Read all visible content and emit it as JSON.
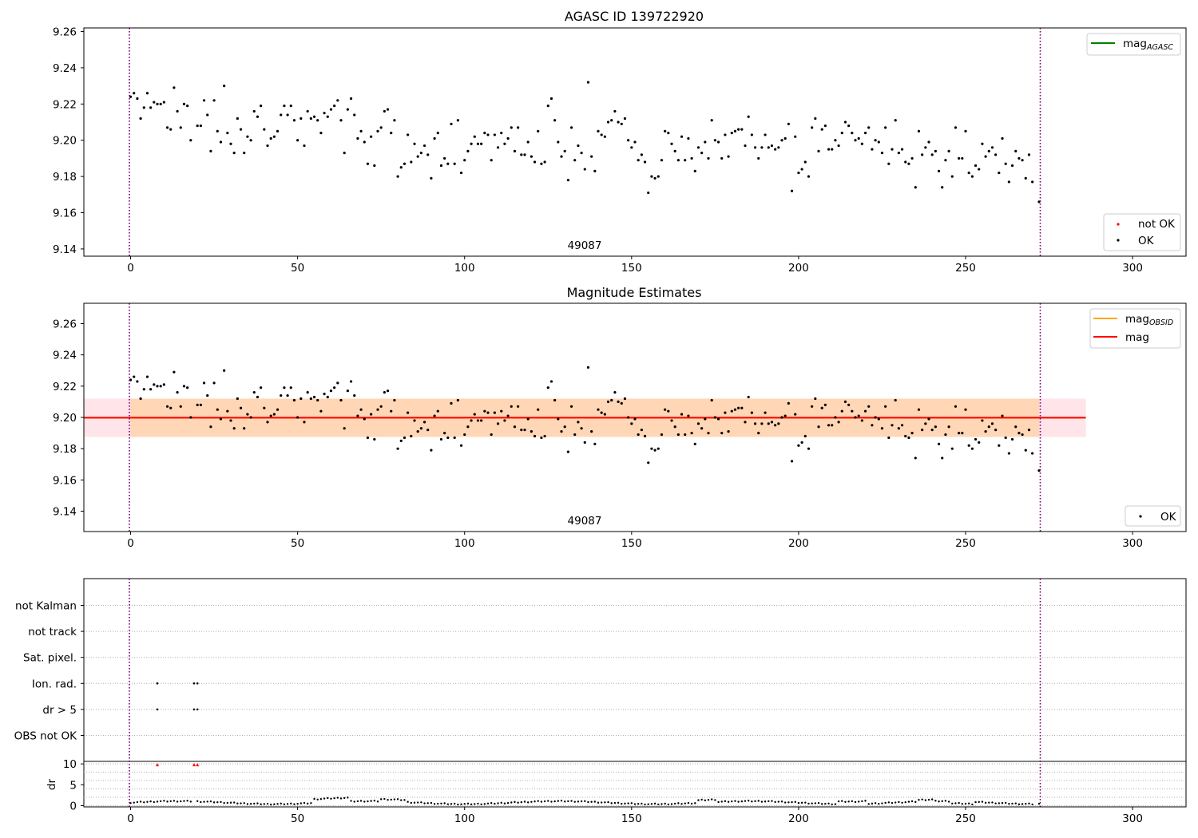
{
  "chart_data": [
    {
      "type": "scatter",
      "title": "AGASC ID 139722920",
      "xlim": [
        -14,
        316
      ],
      "ylim": [
        9.136,
        9.262
      ],
      "xticks": [
        0,
        50,
        100,
        150,
        200,
        250,
        300
      ],
      "yticks": [
        "9.14",
        "9.16",
        "9.18",
        "9.20",
        "9.22",
        "9.24",
        "9.26"
      ],
      "obsid_label": "49087",
      "obs_bounds": [
        0,
        272
      ],
      "legend_lines": [
        {
          "label": "mag",
          "sub": "AGASC",
          "color": "#008000"
        }
      ],
      "legend_markers": [
        {
          "label": "not OK",
          "color": "#ff0000"
        },
        {
          "label": "OK",
          "color": "#000000"
        }
      ],
      "points": [
        [
          0,
          9.224
        ],
        [
          1,
          9.226
        ],
        [
          2,
          9.223
        ],
        [
          3,
          9.212
        ],
        [
          4,
          9.218
        ],
        [
          5,
          9.226
        ],
        [
          6,
          9.218
        ],
        [
          7,
          9.221
        ],
        [
          8,
          9.22
        ],
        [
          9,
          9.22
        ],
        [
          10,
          9.221
        ],
        [
          11,
          9.207
        ],
        [
          12,
          9.206
        ],
        [
          13,
          9.229
        ],
        [
          14,
          9.216
        ],
        [
          15,
          9.207
        ],
        [
          16,
          9.22
        ],
        [
          17,
          9.219
        ],
        [
          18,
          9.2
        ],
        [
          20,
          9.208
        ],
        [
          21,
          9.208
        ],
        [
          22,
          9.222
        ],
        [
          23,
          9.214
        ],
        [
          24,
          9.194
        ],
        [
          25,
          9.222
        ],
        [
          26,
          9.205
        ],
        [
          27,
          9.199
        ],
        [
          28,
          9.23
        ],
        [
          29,
          9.204
        ],
        [
          30,
          9.198
        ],
        [
          31,
          9.193
        ],
        [
          32,
          9.212
        ],
        [
          33,
          9.206
        ],
        [
          34,
          9.193
        ],
        [
          35,
          9.202
        ],
        [
          36,
          9.2
        ],
        [
          37,
          9.216
        ],
        [
          38,
          9.213
        ],
        [
          39,
          9.219
        ],
        [
          40,
          9.206
        ],
        [
          41,
          9.197
        ],
        [
          42,
          9.201
        ],
        [
          43,
          9.202
        ],
        [
          44,
          9.205
        ],
        [
          45,
          9.214
        ],
        [
          46,
          9.219
        ],
        [
          47,
          9.214
        ],
        [
          48,
          9.219
        ],
        [
          49,
          9.211
        ],
        [
          50,
          9.2
        ],
        [
          51,
          9.212
        ],
        [
          52,
          9.197
        ],
        [
          53,
          9.216
        ],
        [
          54,
          9.212
        ],
        [
          55,
          9.213
        ],
        [
          56,
          9.211
        ],
        [
          57,
          9.204
        ],
        [
          58,
          9.215
        ],
        [
          59,
          9.213
        ],
        [
          60,
          9.217
        ],
        [
          61,
          9.219
        ],
        [
          62,
          9.222
        ],
        [
          63,
          9.211
        ],
        [
          64,
          9.193
        ],
        [
          65,
          9.217
        ],
        [
          66,
          9.223
        ],
        [
          67,
          9.214
        ],
        [
          68,
          9.201
        ],
        [
          69,
          9.205
        ],
        [
          70,
          9.199
        ],
        [
          71,
          9.187
        ],
        [
          72,
          9.202
        ],
        [
          73,
          9.186
        ],
        [
          74,
          9.205
        ],
        [
          75,
          9.207
        ],
        [
          76,
          9.216
        ],
        [
          77,
          9.217
        ],
        [
          78,
          9.204
        ],
        [
          79,
          9.211
        ],
        [
          80,
          9.18
        ],
        [
          81,
          9.185
        ],
        [
          82,
          9.187
        ],
        [
          83,
          9.203
        ],
        [
          84,
          9.188
        ],
        [
          85,
          9.198
        ],
        [
          86,
          9.191
        ],
        [
          87,
          9.193
        ],
        [
          88,
          9.197
        ],
        [
          89,
          9.192
        ],
        [
          90,
          9.179
        ],
        [
          91,
          9.201
        ],
        [
          92,
          9.204
        ],
        [
          93,
          9.186
        ],
        [
          94,
          9.19
        ],
        [
          95,
          9.187
        ],
        [
          96,
          9.209
        ],
        [
          97,
          9.187
        ],
        [
          98,
          9.211
        ],
        [
          99,
          9.182
        ],
        [
          100,
          9.189
        ],
        [
          101,
          9.194
        ],
        [
          102,
          9.198
        ],
        [
          103,
          9.202
        ],
        [
          104,
          9.198
        ],
        [
          105,
          9.198
        ],
        [
          106,
          9.204
        ],
        [
          107,
          9.203
        ],
        [
          108,
          9.189
        ],
        [
          109,
          9.203
        ],
        [
          110,
          9.196
        ],
        [
          111,
          9.204
        ],
        [
          112,
          9.198
        ],
        [
          113,
          9.201
        ],
        [
          114,
          9.207
        ],
        [
          115,
          9.194
        ],
        [
          116,
          9.207
        ],
        [
          117,
          9.192
        ],
        [
          118,
          9.192
        ],
        [
          119,
          9.199
        ],
        [
          120,
          9.191
        ],
        [
          121,
          9.188
        ],
        [
          122,
          9.205
        ],
        [
          123,
          9.187
        ],
        [
          124,
          9.188
        ],
        [
          125,
          9.219
        ],
        [
          126,
          9.223
        ],
        [
          127,
          9.211
        ],
        [
          128,
          9.199
        ],
        [
          129,
          9.191
        ],
        [
          130,
          9.194
        ],
        [
          131,
          9.178
        ],
        [
          132,
          9.207
        ],
        [
          133,
          9.189
        ],
        [
          134,
          9.197
        ],
        [
          135,
          9.193
        ],
        [
          136,
          9.184
        ],
        [
          137,
          9.232
        ],
        [
          138,
          9.191
        ],
        [
          139,
          9.183
        ],
        [
          140,
          9.205
        ],
        [
          141,
          9.203
        ],
        [
          142,
          9.202
        ],
        [
          143,
          9.21
        ],
        [
          144,
          9.211
        ],
        [
          145,
          9.216
        ],
        [
          146,
          9.21
        ],
        [
          147,
          9.209
        ],
        [
          148,
          9.212
        ],
        [
          149,
          9.2
        ],
        [
          150,
          9.196
        ],
        [
          151,
          9.199
        ],
        [
          152,
          9.189
        ],
        [
          153,
          9.192
        ],
        [
          154,
          9.188
        ],
        [
          155,
          9.171
        ],
        [
          156,
          9.18
        ],
        [
          157,
          9.179
        ],
        [
          158,
          9.18
        ],
        [
          159,
          9.189
        ],
        [
          160,
          9.205
        ],
        [
          161,
          9.204
        ],
        [
          162,
          9.198
        ],
        [
          163,
          9.194
        ],
        [
          164,
          9.189
        ],
        [
          165,
          9.202
        ],
        [
          166,
          9.189
        ],
        [
          167,
          9.201
        ],
        [
          168,
          9.19
        ],
        [
          169,
          9.183
        ],
        [
          170,
          9.196
        ],
        [
          171,
          9.193
        ],
        [
          172,
          9.199
        ],
        [
          173,
          9.19
        ],
        [
          174,
          9.211
        ],
        [
          175,
          9.2
        ],
        [
          176,
          9.199
        ],
        [
          177,
          9.19
        ],
        [
          178,
          9.203
        ],
        [
          179,
          9.191
        ],
        [
          180,
          9.204
        ],
        [
          181,
          9.205
        ],
        [
          182,
          9.206
        ],
        [
          183,
          9.206
        ],
        [
          184,
          9.197
        ],
        [
          185,
          9.213
        ],
        [
          186,
          9.203
        ],
        [
          187,
          9.196
        ],
        [
          188,
          9.19
        ],
        [
          189,
          9.196
        ],
        [
          190,
          9.203
        ],
        [
          191,
          9.196
        ],
        [
          192,
          9.197
        ],
        [
          193,
          9.195
        ],
        [
          194,
          9.196
        ],
        [
          195,
          9.2
        ],
        [
          196,
          9.201
        ],
        [
          197,
          9.209
        ],
        [
          198,
          9.172
        ],
        [
          199,
          9.202
        ],
        [
          200,
          9.182
        ],
        [
          201,
          9.184
        ],
        [
          202,
          9.188
        ],
        [
          203,
          9.18
        ],
        [
          204,
          9.207
        ],
        [
          205,
          9.212
        ],
        [
          206,
          9.194
        ],
        [
          207,
          9.206
        ],
        [
          208,
          9.208
        ],
        [
          209,
          9.195
        ],
        [
          210,
          9.195
        ],
        [
          211,
          9.2
        ],
        [
          212,
          9.197
        ],
        [
          213,
          9.204
        ],
        [
          214,
          9.21
        ],
        [
          215,
          9.208
        ],
        [
          216,
          9.204
        ],
        [
          217,
          9.2
        ],
        [
          218,
          9.201
        ],
        [
          219,
          9.198
        ],
        [
          220,
          9.204
        ],
        [
          221,
          9.207
        ],
        [
          222,
          9.195
        ],
        [
          223,
          9.2
        ],
        [
          224,
          9.199
        ],
        [
          225,
          9.193
        ],
        [
          226,
          9.207
        ],
        [
          227,
          9.187
        ],
        [
          228,
          9.195
        ],
        [
          229,
          9.211
        ],
        [
          230,
          9.193
        ],
        [
          231,
          9.195
        ],
        [
          232,
          9.188
        ],
        [
          233,
          9.187
        ],
        [
          234,
          9.19
        ],
        [
          235,
          9.174
        ],
        [
          236,
          9.205
        ],
        [
          237,
          9.192
        ],
        [
          238,
          9.196
        ],
        [
          239,
          9.199
        ],
        [
          240,
          9.192
        ],
        [
          241,
          9.194
        ],
        [
          242,
          9.183
        ],
        [
          243,
          9.174
        ],
        [
          244,
          9.189
        ],
        [
          245,
          9.194
        ],
        [
          246,
          9.18
        ],
        [
          247,
          9.207
        ],
        [
          248,
          9.19
        ],
        [
          249,
          9.19
        ],
        [
          250,
          9.205
        ],
        [
          251,
          9.182
        ],
        [
          252,
          9.18
        ],
        [
          253,
          9.186
        ],
        [
          254,
          9.184
        ],
        [
          255,
          9.198
        ],
        [
          256,
          9.191
        ],
        [
          257,
          9.194
        ],
        [
          258,
          9.196
        ],
        [
          259,
          9.192
        ],
        [
          260,
          9.182
        ],
        [
          261,
          9.201
        ],
        [
          262,
          9.187
        ],
        [
          263,
          9.177
        ],
        [
          264,
          9.186
        ],
        [
          265,
          9.194
        ],
        [
          266,
          9.19
        ],
        [
          267,
          9.189
        ],
        [
          268,
          9.179
        ],
        [
          269,
          9.192
        ],
        [
          270,
          9.177
        ],
        [
          272,
          9.166
        ]
      ]
    },
    {
      "type": "scatter",
      "title": "Magnitude Estimates",
      "xlim": [
        -14,
        316
      ],
      "ylim": [
        9.127,
        9.273
      ],
      "xticks": [
        0,
        50,
        100,
        150,
        200,
        250,
        300
      ],
      "yticks": [
        "9.14",
        "9.16",
        "9.18",
        "9.20",
        "9.22",
        "9.24",
        "9.26"
      ],
      "obsid_label": "49087",
      "obs_bounds": [
        0,
        272
      ],
      "mag_line": 9.1998,
      "mag_band": [
        9.1875,
        9.212
      ],
      "obsid_band": [
        9.1875,
        9.212
      ],
      "legend_lines": [
        {
          "label": "mag",
          "sub": "OBSID",
          "color": "#ffa500"
        },
        {
          "label": "mag",
          "sub": "",
          "color": "#ff0000"
        }
      ],
      "legend_markers": [
        {
          "label": "OK",
          "color": "#000000"
        }
      ],
      "points_ref": "same as panel 1"
    },
    {
      "type": "scatter",
      "title": "",
      "xlim": [
        -14,
        316
      ],
      "flag_rows": [
        "OBS not OK",
        "dr > 5",
        "Ion. rad.",
        "Sat. pixel.",
        "not track",
        "not Kalman"
      ],
      "flagged": {
        "Ion. rad.": [
          8,
          19,
          20
        ],
        "dr > 5": [
          8,
          19,
          20
        ]
      },
      "dr_axis": {
        "ylabel": "dr",
        "yticks": [
          "0",
          "5",
          "10"
        ],
        "ylim": [
          -0.3,
          10.6
        ]
      },
      "dr_red_points": [
        [
          8,
          9.8
        ],
        [
          19,
          9.8
        ],
        [
          20,
          9.8
        ]
      ]
    }
  ]
}
